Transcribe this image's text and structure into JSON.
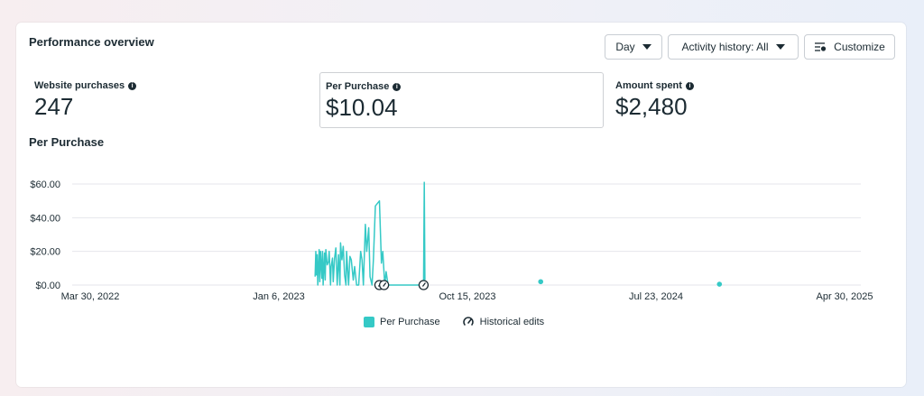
{
  "header": {
    "title": "Performance overview"
  },
  "controls": {
    "day_label": "Day",
    "activity_label": "Activity history: All",
    "customize_label": "Customize"
  },
  "metrics": [
    {
      "label": "Website purchases",
      "value": "247"
    },
    {
      "label": "Per Purchase",
      "value": "$10.04"
    },
    {
      "label": "Amount spent",
      "value": "$2,480"
    }
  ],
  "chart": {
    "title": "Per Purchase"
  },
  "legend": {
    "series_label": "Per Purchase",
    "edits_label": "Historical edits"
  },
  "colors": {
    "series": "#35c9c6",
    "grid": "#e4e6eb",
    "text": "#1c2b33"
  },
  "chart_data": {
    "type": "line",
    "title": "Per Purchase",
    "xlabel": "",
    "ylabel": "",
    "x_ticks": [
      "Mar 30, 2022",
      "Jan 6, 2023",
      "Oct 15, 2023",
      "Jul 23, 2024",
      "Apr 30, 2025"
    ],
    "y_ticks": [
      "$0.00",
      "$20.00",
      "$40.00",
      "$60.00"
    ],
    "xlim": [
      "2022-03-30",
      "2025-04-30"
    ],
    "ylim": [
      0,
      60
    ],
    "grid": true,
    "legend_position": "bottom",
    "series": [
      {
        "name": "Per Purchase",
        "x": [
          "2023-03-01",
          "2023-03-02",
          "2023-03-03",
          "2023-03-04",
          "2023-03-05",
          "2023-03-07",
          "2023-03-08",
          "2023-03-09",
          "2023-03-11",
          "2023-03-12",
          "2023-03-13",
          "2023-03-15",
          "2023-03-16",
          "2023-03-17",
          "2023-03-19",
          "2023-03-21",
          "2023-03-22",
          "2023-03-24",
          "2023-03-25",
          "2023-03-27",
          "2023-03-28",
          "2023-03-30",
          "2023-04-01",
          "2023-04-03",
          "2023-04-05",
          "2023-04-07",
          "2023-04-08",
          "2023-04-10",
          "2023-04-12",
          "2023-04-14",
          "2023-04-16",
          "2023-04-17",
          "2023-04-20",
          "2023-04-22",
          "2023-04-24",
          "2023-04-27",
          "2023-04-29",
          "2023-05-02",
          "2023-05-05",
          "2023-05-08",
          "2023-05-10",
          "2023-05-12",
          "2023-05-15",
          "2023-05-17",
          "2023-05-20",
          "2023-05-22",
          "2023-05-25",
          "2023-05-27",
          "2023-05-30",
          "2023-06-05",
          "2023-06-08",
          "2023-06-10",
          "2023-06-13",
          "2023-06-15",
          "2023-06-18",
          "2023-06-20",
          "2023-06-23",
          "2023-06-25",
          "2023-07-01",
          "2023-07-03",
          "2023-07-05",
          "2023-07-07",
          "2023-07-09",
          "2023-07-11",
          "2023-08-10",
          "2023-08-11",
          "2023-08-12"
        ],
        "y": [
          5,
          20,
          6,
          18,
          0,
          21,
          2,
          20,
          4,
          20,
          0,
          19,
          3,
          21,
          12,
          14,
          20,
          0,
          11,
          16,
          2,
          16,
          22,
          0,
          18,
          0,
          25,
          15,
          23,
          6,
          0,
          20,
          0,
          17,
          15,
          3,
          11,
          0,
          0,
          20,
          15,
          0,
          36,
          20,
          34,
          5,
          0,
          15,
          47,
          50,
          13,
          20,
          0,
          8,
          0,
          0,
          0,
          0,
          0,
          0,
          0,
          0,
          0,
          0,
          0,
          61,
          3
        ]
      }
    ],
    "points": [
      {
        "x": "2024-02-01",
        "y": 2
      },
      {
        "x": "2024-10-25",
        "y": 0.5
      }
    ],
    "historical_edits": [
      "2023-06-05",
      "2023-06-12",
      "2023-08-10"
    ]
  }
}
